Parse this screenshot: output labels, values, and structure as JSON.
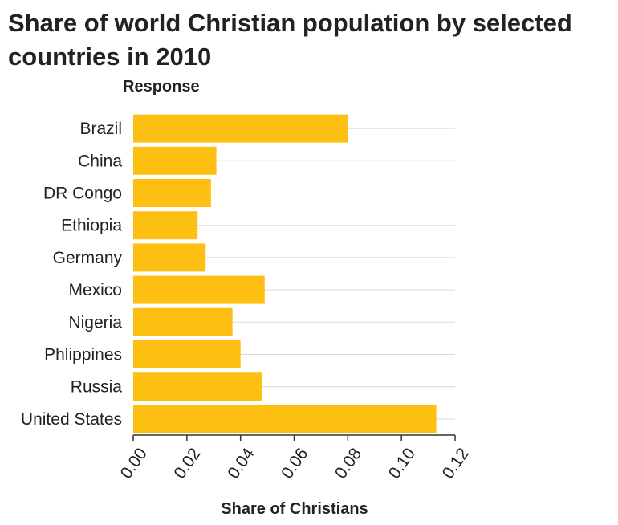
{
  "chart_data": {
    "type": "bar",
    "orientation": "horizontal",
    "title": "Share of world Christian population by selected countries in 2010",
    "ylabel": "Response",
    "xlabel": "Share of Christians",
    "categories": [
      "Brazil",
      "China",
      "DR Congo",
      "Ethiopia",
      "Germany",
      "Mexico",
      "Nigeria",
      "Phlippines",
      "Russia",
      "United States"
    ],
    "values": [
      0.08,
      0.031,
      0.029,
      0.024,
      0.027,
      0.049,
      0.037,
      0.04,
      0.048,
      0.113
    ],
    "xlim": [
      0,
      0.12
    ],
    "xticks": [
      "0.00",
      "0.02",
      "0.04",
      "0.06",
      "0.08",
      "0.10",
      "0.12"
    ],
    "grid": true,
    "bar_color": "#FDBF11",
    "grid_color": "#d9d9d9"
  }
}
